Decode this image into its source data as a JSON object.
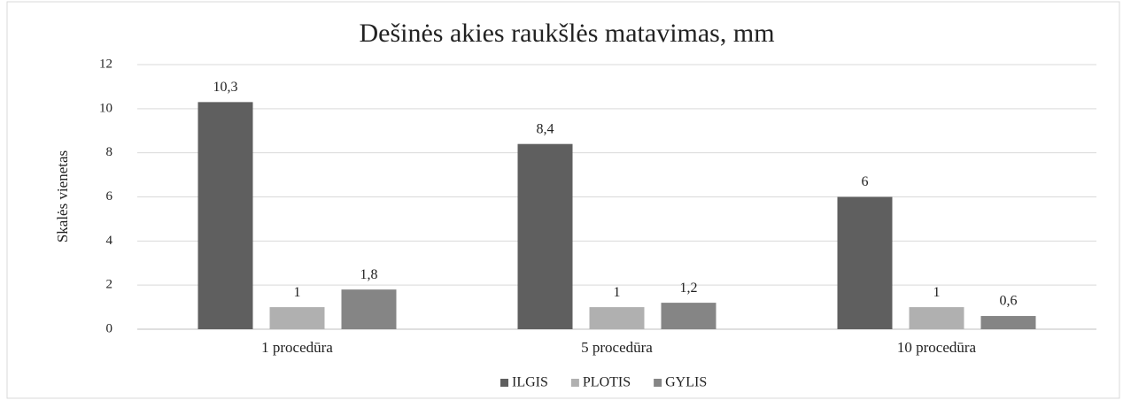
{
  "chart_data": {
    "type": "bar",
    "title": "Dešinės akies raukšlės matavimas, mm",
    "y_label": "Skalės vienetas",
    "categories": [
      "1 procedūra",
      "5 procedūra",
      "10 procedūra"
    ],
    "series": [
      {
        "name": "ILGIS",
        "color": "#5f5f5f",
        "values": [
          10.3,
          8.4,
          6
        ],
        "value_labels": [
          "10,3",
          "8,4",
          "6"
        ]
      },
      {
        "name": "PLOTIS",
        "color": "#b0b0b0",
        "values": [
          1,
          1,
          1
        ],
        "value_labels": [
          "1",
          "1",
          "1"
        ]
      },
      {
        "name": "GYLIS",
        "color": "#858585",
        "values": [
          1.8,
          1.2,
          0.6
        ],
        "value_labels": [
          "1,8",
          "1,2",
          "0,6"
        ]
      }
    ],
    "ylim": [
      0,
      12
    ],
    "yticks": [
      0,
      2,
      4,
      6,
      8,
      10,
      12
    ],
    "grid": true,
    "legend": "bottom"
  }
}
